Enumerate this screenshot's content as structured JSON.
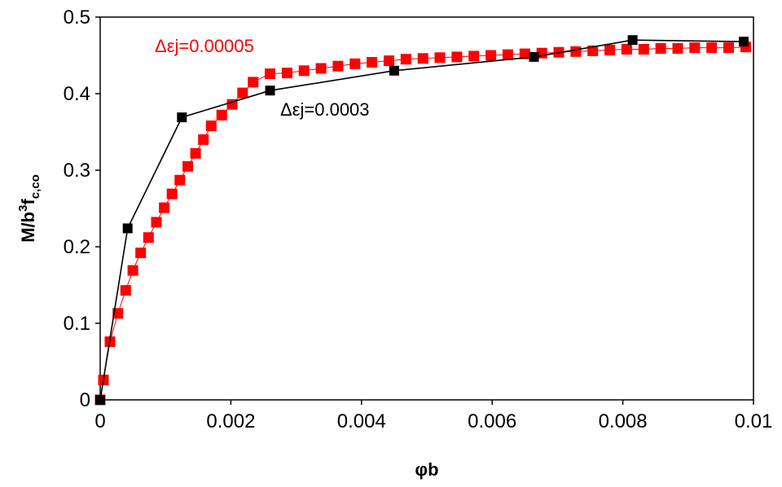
{
  "chart_data": {
    "type": "scatter",
    "xlabel": "φb",
    "ylabel": {
      "main": "M/b",
      "sup": "3",
      "mid": "f",
      "sub": "c,co"
    },
    "xlim": [
      0,
      0.01
    ],
    "ylim": [
      0,
      0.5
    ],
    "x_ticks": [
      {
        "value": 0,
        "label": "0"
      },
      {
        "value": 0.002,
        "label": "0.002"
      },
      {
        "value": 0.004,
        "label": "0.004"
      },
      {
        "value": 0.006,
        "label": "0.006"
      },
      {
        "value": 0.008,
        "label": "0.008"
      },
      {
        "value": 0.01,
        "label": "0.01"
      }
    ],
    "y_ticks": [
      {
        "value": 0,
        "label": "0"
      },
      {
        "value": 0.1,
        "label": "0.1"
      },
      {
        "value": 0.2,
        "label": "0.2"
      },
      {
        "value": 0.3,
        "label": "0.3"
      },
      {
        "value": 0.4,
        "label": "0.4"
      },
      {
        "value": 0.5,
        "label": "0.5"
      }
    ],
    "grid": false,
    "series": [
      {
        "name": "Δεj=0.00005",
        "color": "#ff0000",
        "marker": "square",
        "x": [
          0.0,
          5e-05,
          0.00015,
          0.00027,
          0.00039,
          0.0005,
          0.00062,
          0.00074,
          0.00086,
          0.00098,
          0.0011,
          0.00122,
          0.00134,
          0.00146,
          0.00158,
          0.0017,
          0.00186,
          0.00202,
          0.00218,
          0.00234,
          0.0026,
          0.00286,
          0.00312,
          0.00338,
          0.00364,
          0.0039,
          0.00416,
          0.00442,
          0.00468,
          0.00494,
          0.0052,
          0.00546,
          0.00572,
          0.00598,
          0.00624,
          0.0065,
          0.00676,
          0.00702,
          0.00728,
          0.00754,
          0.0078,
          0.00806,
          0.00832,
          0.00858,
          0.00884,
          0.0091,
          0.00936,
          0.00962,
          0.00988
        ],
        "y": [
          0.0,
          0.026,
          0.076,
          0.113,
          0.143,
          0.169,
          0.192,
          0.212,
          0.232,
          0.251,
          0.269,
          0.287,
          0.305,
          0.322,
          0.34,
          0.358,
          0.372,
          0.386,
          0.401,
          0.415,
          0.426,
          0.427,
          0.43,
          0.433,
          0.436,
          0.439,
          0.441,
          0.443,
          0.445,
          0.446,
          0.447,
          0.448,
          0.449,
          0.45,
          0.451,
          0.452,
          0.453,
          0.454,
          0.455,
          0.456,
          0.457,
          0.458,
          0.458,
          0.459,
          0.459,
          0.46,
          0.46,
          0.46,
          0.461
        ]
      },
      {
        "name": "Δεj=0.0003",
        "color": "#000000",
        "marker": "square",
        "x": [
          0.0,
          0.00042,
          0.00125,
          0.0026,
          0.0045,
          0.00664,
          0.00815,
          0.00985
        ],
        "y": [
          0.0,
          0.224,
          0.369,
          0.404,
          0.43,
          0.448,
          0.47,
          0.468
        ]
      }
    ],
    "annotations": [
      {
        "text": "Δεj=0.00005",
        "color": "#ff0000"
      },
      {
        "text": "Δεj=0.0003",
        "color": "#000000"
      }
    ]
  }
}
